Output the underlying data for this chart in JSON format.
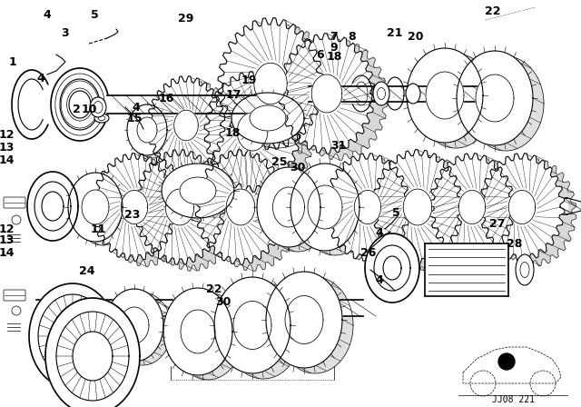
{
  "bg_color": "#ffffff",
  "line_color": "#000000",
  "diagram_id": "JJ08 221",
  "fig_width": 6.4,
  "fig_height": 4.48,
  "dpi": 100,
  "labels": [
    [
      "4",
      55,
      18
    ],
    [
      "5",
      105,
      18
    ],
    [
      "3",
      73,
      38
    ],
    [
      "1",
      18,
      68
    ],
    [
      "4",
      50,
      88
    ],
    [
      "2",
      85,
      118
    ],
    [
      "10",
      100,
      118
    ],
    [
      "12",
      10,
      148
    ],
    [
      "13",
      10,
      162
    ],
    [
      "14",
      10,
      176
    ],
    [
      "15",
      150,
      128
    ],
    [
      "4",
      152,
      118
    ],
    [
      "16",
      185,
      108
    ],
    [
      "29",
      205,
      22
    ],
    [
      "17",
      258,
      105
    ],
    [
      "19",
      275,
      90
    ],
    [
      "6",
      355,
      62
    ],
    [
      "7",
      370,
      42
    ],
    [
      "8",
      390,
      42
    ],
    [
      "9",
      370,
      55
    ],
    [
      "18",
      370,
      58
    ],
    [
      "20",
      460,
      42
    ],
    [
      "21",
      438,
      38
    ],
    [
      "22",
      545,
      12
    ],
    [
      "25",
      310,
      178
    ],
    [
      "30",
      330,
      185
    ],
    [
      "31",
      375,
      160
    ],
    [
      "18",
      258,
      145
    ],
    [
      "11",
      110,
      255
    ],
    [
      "12",
      10,
      252
    ],
    [
      "13",
      10,
      265
    ],
    [
      "14",
      10,
      278
    ],
    [
      "23",
      148,
      238
    ],
    [
      "24",
      98,
      298
    ],
    [
      "22",
      238,
      318
    ],
    [
      "30",
      248,
      330
    ],
    [
      "4",
      430,
      258
    ],
    [
      "5",
      438,
      235
    ],
    [
      "26",
      408,
      278
    ],
    [
      "27",
      550,
      248
    ],
    [
      "28",
      570,
      268
    ],
    [
      "4",
      430,
      305
    ]
  ]
}
